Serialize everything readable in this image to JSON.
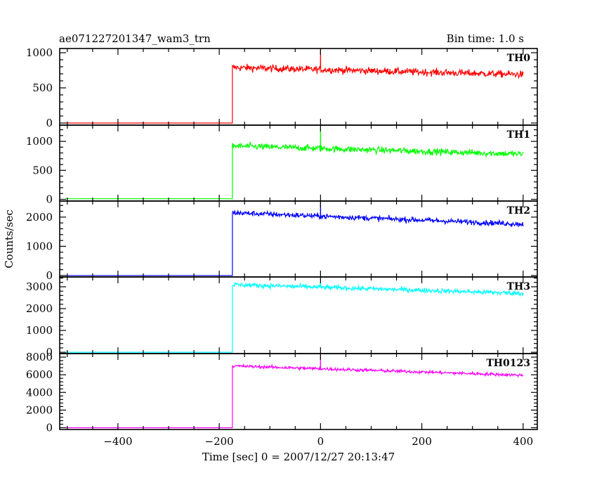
{
  "chart_data": {
    "type": "line",
    "title": "ae071227201347_wam3_trn",
    "subtitle": "Bin time: 1.0 s",
    "xlabel": "Time [sec] 0 = 2007/12/27 20:13:47",
    "ylabel": "Counts/sec",
    "xlim": [
      -515,
      428
    ],
    "x_ticks": [
      -400,
      -200,
      0,
      200,
      400
    ],
    "x_tick_labels": [
      "−400",
      "−200",
      "0",
      "200",
      "400"
    ],
    "x_ticks_label_panel": "TH0123",
    "rise_time": -174,
    "spike_time": 0,
    "x_end": 400,
    "grid": false,
    "legend": "none",
    "panels": [
      {
        "name": "TH0",
        "color": "#ff0000",
        "ylim": [
          -30,
          1060
        ],
        "y_ticks": [
          0,
          500,
          1000
        ],
        "pre_level": 0,
        "post_start": 790,
        "post_end": 690,
        "noise": 25,
        "spike_peak": 1050
      },
      {
        "name": "TH1",
        "color": "#00ff00",
        "ylim": [
          -30,
          1280
        ],
        "y_ticks": [
          0,
          500,
          1000
        ],
        "pre_level": 10,
        "post_start": 920,
        "post_end": 780,
        "noise": 28,
        "spike_peak": 1270
      },
      {
        "name": "TH2",
        "color": "#0000ff",
        "ylim": [
          -50,
          2550
        ],
        "y_ticks": [
          0,
          1000,
          2000
        ],
        "pre_level": 0,
        "post_start": 2150,
        "post_end": 1760,
        "noise": 45,
        "spike_peak": 2550
      },
      {
        "name": "TH3",
        "color": "#00ffff",
        "ylim": [
          -60,
          3450
        ],
        "y_ticks": [
          0,
          1000,
          2000,
          3000
        ],
        "pre_level": 0,
        "post_start": 3100,
        "post_end": 2700,
        "noise": 55,
        "spike_peak": 3450
      },
      {
        "name": "TH0123",
        "color": "#ff00ff",
        "ylim": [
          -200,
          8400
        ],
        "y_ticks": [
          0,
          2000,
          4000,
          6000,
          8000
        ],
        "pre_level": 0,
        "post_start": 7000,
        "post_end": 5950,
        "noise": 90,
        "spike_peak": 8300
      }
    ]
  }
}
